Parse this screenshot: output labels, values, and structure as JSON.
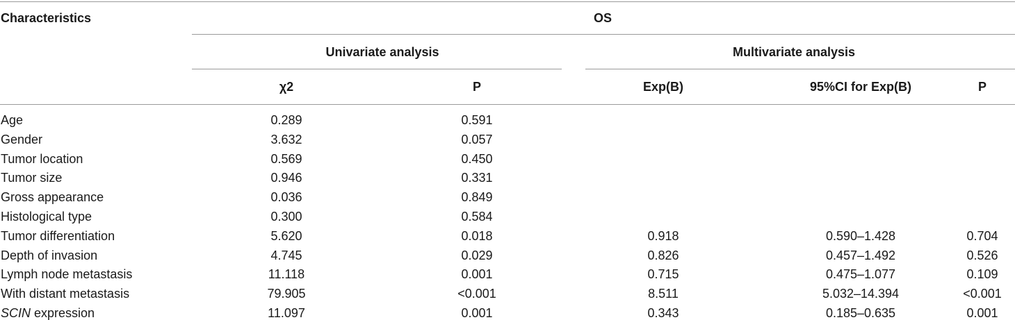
{
  "table": {
    "header": {
      "characteristics": "Characteristics",
      "os": "OS",
      "univariate": "Univariate analysis",
      "multivariate": "Multivariate analysis",
      "chi2": "χ2",
      "p_uni": "P",
      "expb": "Exp(B)",
      "ci": "95%CI for Exp(B)",
      "p_multi": "P"
    },
    "rows": [
      {
        "label": "Age",
        "chi2": "0.289",
        "p_uni": "0.591",
        "expb": "",
        "ci": "",
        "p_multi": ""
      },
      {
        "label": "Gender",
        "chi2": "3.632",
        "p_uni": "0.057",
        "expb": "",
        "ci": "",
        "p_multi": ""
      },
      {
        "label": "Tumor location",
        "chi2": "0.569",
        "p_uni": "0.450",
        "expb": "",
        "ci": "",
        "p_multi": ""
      },
      {
        "label": "Tumor size",
        "chi2": "0.946",
        "p_uni": "0.331",
        "expb": "",
        "ci": "",
        "p_multi": ""
      },
      {
        "label": "Gross appearance",
        "chi2": "0.036",
        "p_uni": "0.849",
        "expb": "",
        "ci": "",
        "p_multi": ""
      },
      {
        "label": "Histological type",
        "chi2": "0.300",
        "p_uni": "0.584",
        "expb": "",
        "ci": "",
        "p_multi": ""
      },
      {
        "label": "Tumor differentiation",
        "chi2": "5.620",
        "p_uni": "0.018",
        "expb": "0.918",
        "ci": "0.590–1.428",
        "p_multi": "0.704"
      },
      {
        "label": "Depth of invasion",
        "chi2": "4.745",
        "p_uni": "0.029",
        "expb": "0.826",
        "ci": "0.457–1.492",
        "p_multi": "0.526"
      },
      {
        "label": "Lymph node metastasis",
        "chi2": "11.118",
        "p_uni": "0.001",
        "expb": "0.715",
        "ci": "0.475–1.077",
        "p_multi": "0.109"
      },
      {
        "label": "With distant metastasis",
        "chi2": "79.905",
        "p_uni": "<0.001",
        "expb": "8.511",
        "ci": "5.032–14.394",
        "p_multi": "<0.001"
      },
      {
        "label_italic": "SCIN",
        "label_rest": " expression",
        "chi2": "11.097",
        "p_uni": "0.001",
        "expb": "0.343",
        "ci": "0.185–0.635",
        "p_multi": "0.001"
      }
    ]
  }
}
